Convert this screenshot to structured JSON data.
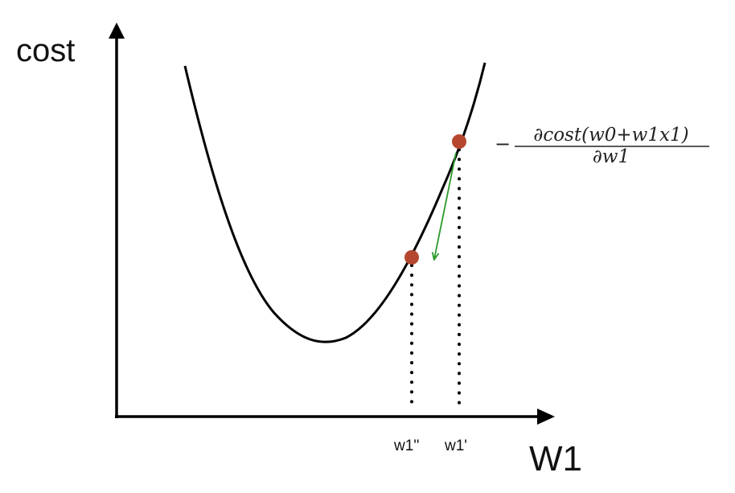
{
  "axes": {
    "y_label": "cost",
    "x_label": "W1"
  },
  "ticks": {
    "w1_new": "w1''",
    "w1_old": "w1'"
  },
  "formula": {
    "sign": "−",
    "numerator": "∂cost(w0+w1x1)",
    "denominator": "∂w1"
  },
  "colors": {
    "curve": "#000000",
    "points": "#b5472f",
    "arrow": "#2a9a2a",
    "axes": "#000000"
  }
}
